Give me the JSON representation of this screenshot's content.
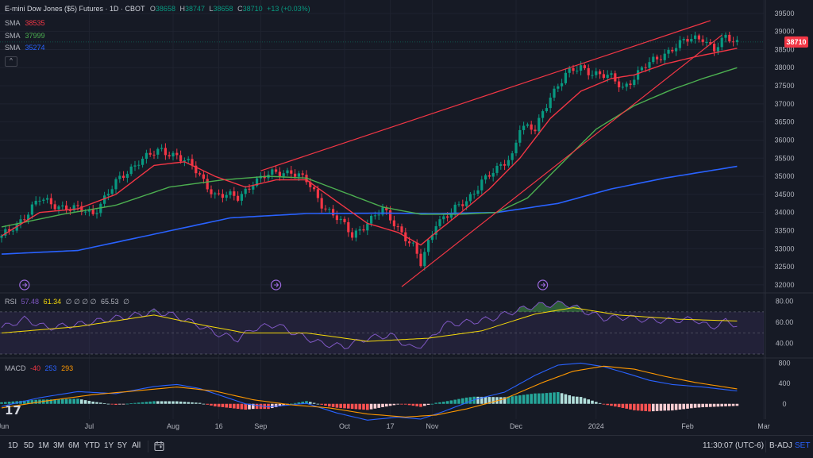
{
  "header": {
    "symbol": "E-mini Dow Jones ($5) Futures · 1D · CBOT",
    "o_label": "O",
    "o_value": "38658",
    "h_label": "H",
    "h_value": "38747",
    "l_label": "L",
    "l_value": "38658",
    "c_label": "C",
    "c_value": "38710",
    "change": "+13 (+0.03%)",
    "collapse_icon": "chevron-up-icon"
  },
  "sma": [
    {
      "label": "SMA",
      "value": "38535",
      "color": "#f23645"
    },
    {
      "label": "SMA",
      "value": "37999",
      "color": "#4caf50"
    },
    {
      "label": "SMA",
      "value": "35274",
      "color": "#2962ff"
    }
  ],
  "rsi_legend": {
    "label": "RSI",
    "v1": "57.48",
    "v2": "61.34",
    "zeros": "∅ ∅ ∅ ∅",
    "v3": "65.53",
    "tail": "∅",
    "c1": "#7e57c2",
    "c2": "#f5d90a"
  },
  "macd_legend": {
    "label": "MACD",
    "v1": "-40",
    "v2": "253",
    "v3": "293",
    "c1": "#f23645",
    "c2": "#2962ff",
    "c3": "#ff9800"
  },
  "last_price": "38710",
  "bottom": {
    "timeframes": [
      "1D",
      "5D",
      "1M",
      "3M",
      "6M",
      "YTD",
      "1Y",
      "5Y",
      "All"
    ],
    "time": "11:30:07 (UTC-6)",
    "badj": "B-ADJ",
    "set": "SET"
  },
  "colors": {
    "up": "#089981",
    "down": "#f23645",
    "sma20": "#f23645",
    "sma50": "#4caf50",
    "sma200": "#2962ff",
    "trend": "#f23645",
    "rsi": "#7e57c2",
    "rsi_ma": "#f5d90a",
    "macd": "#2962ff",
    "signal": "#ff9800",
    "bg": "#161a25",
    "grid": "#1f2330"
  },
  "chart_data": [
    {
      "type": "candlestick",
      "title": "E-mini Dow Jones ($5) Futures · 1D · CBOT",
      "y_ticks": [
        32000,
        32500,
        33000,
        33500,
        34000,
        34500,
        35000,
        35500,
        36000,
        36500,
        37000,
        37500,
        38000,
        38500,
        39000,
        39500
      ],
      "y_tick_labels": [
        "32000",
        "32500",
        "33000",
        "33500",
        "34000",
        "34500",
        "35000",
        "35500",
        "36000",
        "36500",
        "37000",
        "37500",
        "38000",
        "38500",
        "39000",
        "39500"
      ],
      "ylim": [
        31800,
        39650
      ],
      "x_tick_labels": [
        "Jun",
        "Jul",
        "Aug",
        "16",
        "Sep",
        "Oct",
        "17",
        "Nov",
        "Dec",
        "2024",
        "Feb",
        "Mar"
      ],
      "x_tick_bars": [
        -1,
        23,
        45,
        57,
        68,
        90,
        102,
        113,
        135,
        156,
        180,
        200
      ],
      "bar_count": 194,
      "path_knots": [
        [
          0,
          33300
        ],
        [
          6,
          33900
        ],
        [
          10,
          34350
        ],
        [
          18,
          34100
        ],
        [
          24,
          34000
        ],
        [
          30,
          34800
        ],
        [
          36,
          35450
        ],
        [
          42,
          35700
        ],
        [
          46,
          35600
        ],
        [
          50,
          35250
        ],
        [
          56,
          34500
        ],
        [
          62,
          34400
        ],
        [
          66,
          34850
        ],
        [
          72,
          35100
        ],
        [
          76,
          35150
        ],
        [
          80,
          34850
        ],
        [
          84,
          34250
        ],
        [
          88,
          33850
        ],
        [
          92,
          33350
        ],
        [
          96,
          33750
        ],
        [
          100,
          34050
        ],
        [
          104,
          33600
        ],
        [
          108,
          33050
        ],
        [
          110,
          32550
        ],
        [
          114,
          33750
        ],
        [
          118,
          34000
        ],
        [
          122,
          34300
        ],
        [
          126,
          34900
        ],
        [
          130,
          35150
        ],
        [
          134,
          35600
        ],
        [
          136,
          36400
        ],
        [
          140,
          36250
        ],
        [
          144,
          37250
        ],
        [
          148,
          37800
        ],
        [
          152,
          38000
        ],
        [
          156,
          37850
        ],
        [
          160,
          37700
        ],
        [
          163,
          37450
        ],
        [
          168,
          37950
        ],
        [
          172,
          38250
        ],
        [
          176,
          38550
        ],
        [
          180,
          38750
        ],
        [
          184,
          38850
        ],
        [
          187,
          38500
        ],
        [
          190,
          38800
        ],
        [
          193,
          38710
        ]
      ],
      "trendlines": [
        {
          "from": [
            68,
            35150
          ],
          "to": [
            186,
            39300
          ]
        },
        {
          "from": [
            105,
            31950
          ],
          "to": [
            189,
            38900
          ]
        }
      ],
      "sma20_knots": [
        [
          0,
          33350
        ],
        [
          10,
          34000
        ],
        [
          20,
          34100
        ],
        [
          30,
          34500
        ],
        [
          40,
          35300
        ],
        [
          48,
          35400
        ],
        [
          56,
          35000
        ],
        [
          64,
          34700
        ],
        [
          72,
          34900
        ],
        [
          80,
          34900
        ],
        [
          88,
          34300
        ],
        [
          96,
          33700
        ],
        [
          104,
          33450
        ],
        [
          110,
          33100
        ],
        [
          114,
          33450
        ],
        [
          120,
          33950
        ],
        [
          128,
          34650
        ],
        [
          136,
          35500
        ],
        [
          144,
          36600
        ],
        [
          152,
          37350
        ],
        [
          160,
          37700
        ],
        [
          166,
          37800
        ],
        [
          174,
          38100
        ],
        [
          182,
          38300
        ],
        [
          193,
          38535
        ]
      ],
      "sma50_knots": [
        [
          0,
          33600
        ],
        [
          16,
          33950
        ],
        [
          30,
          34200
        ],
        [
          44,
          34700
        ],
        [
          58,
          34900
        ],
        [
          70,
          35000
        ],
        [
          80,
          34950
        ],
        [
          90,
          34550
        ],
        [
          100,
          34150
        ],
        [
          110,
          33950
        ],
        [
          120,
          33950
        ],
        [
          130,
          34000
        ],
        [
          138,
          34400
        ],
        [
          146,
          35250
        ],
        [
          156,
          36300
        ],
        [
          166,
          36950
        ],
        [
          176,
          37400
        ],
        [
          184,
          37700
        ],
        [
          193,
          37999
        ]
      ],
      "sma200_knots": [
        [
          0,
          32850
        ],
        [
          20,
          32950
        ],
        [
          40,
          33400
        ],
        [
          60,
          33850
        ],
        [
          80,
          33970
        ],
        [
          100,
          33980
        ],
        [
          114,
          33970
        ],
        [
          130,
          34000
        ],
        [
          146,
          34250
        ],
        [
          160,
          34650
        ],
        [
          174,
          34950
        ],
        [
          193,
          35274
        ]
      ]
    },
    {
      "type": "line",
      "title": "RSI",
      "y_ticks": [
        40,
        60,
        80
      ],
      "y_tick_labels": [
        "40.00",
        "60.00",
        "80.00"
      ],
      "ylim": [
        27,
        88
      ],
      "band": [
        30,
        70
      ],
      "rsi_knots": [
        [
          0,
          55
        ],
        [
          6,
          63
        ],
        [
          12,
          55
        ],
        [
          20,
          58
        ],
        [
          28,
          63
        ],
        [
          34,
          66
        ],
        [
          40,
          70
        ],
        [
          44,
          68
        ],
        [
          50,
          60
        ],
        [
          56,
          50
        ],
        [
          62,
          44
        ],
        [
          66,
          54
        ],
        [
          72,
          58
        ],
        [
          78,
          48
        ],
        [
          84,
          40
        ],
        [
          90,
          37
        ],
        [
          96,
          45
        ],
        [
          102,
          48
        ],
        [
          108,
          35
        ],
        [
          112,
          42
        ],
        [
          116,
          58
        ],
        [
          122,
          60
        ],
        [
          128,
          63
        ],
        [
          134,
          70
        ],
        [
          140,
          76
        ],
        [
          144,
          77
        ],
        [
          148,
          78
        ],
        [
          152,
          72
        ],
        [
          158,
          64
        ],
        [
          164,
          65
        ],
        [
          170,
          62
        ],
        [
          176,
          62
        ],
        [
          182,
          63
        ],
        [
          186,
          55
        ],
        [
          190,
          61
        ],
        [
          193,
          57.48
        ]
      ],
      "ma_knots": [
        [
          0,
          50
        ],
        [
          20,
          56
        ],
        [
          40,
          67
        ],
        [
          52,
          58
        ],
        [
          64,
          50
        ],
        [
          80,
          50
        ],
        [
          96,
          42
        ],
        [
          112,
          45
        ],
        [
          126,
          52
        ],
        [
          140,
          68
        ],
        [
          150,
          74
        ],
        [
          162,
          67
        ],
        [
          178,
          63
        ],
        [
          193,
          61.34
        ]
      ]
    },
    {
      "type": "bar",
      "title": "MACD",
      "y_ticks": [
        0,
        400,
        800
      ],
      "y_tick_labels": [
        "0",
        "400",
        "800"
      ],
      "ylim": [
        -300,
        900
      ],
      "macd_knots": [
        [
          0,
          -50
        ],
        [
          10,
          120
        ],
        [
          20,
          240
        ],
        [
          30,
          200
        ],
        [
          40,
          340
        ],
        [
          46,
          380
        ],
        [
          52,
          300
        ],
        [
          58,
          150
        ],
        [
          64,
          0
        ],
        [
          70,
          -60
        ],
        [
          80,
          10
        ],
        [
          88,
          -180
        ],
        [
          96,
          -320
        ],
        [
          104,
          -260
        ],
        [
          110,
          -300
        ],
        [
          116,
          -150
        ],
        [
          124,
          80
        ],
        [
          132,
          230
        ],
        [
          140,
          560
        ],
        [
          146,
          760
        ],
        [
          152,
          800
        ],
        [
          158,
          730
        ],
        [
          164,
          600
        ],
        [
          170,
          460
        ],
        [
          176,
          380
        ],
        [
          184,
          330
        ],
        [
          193,
          253
        ]
      ],
      "signal_knots": [
        [
          0,
          -80
        ],
        [
          12,
          60
        ],
        [
          24,
          180
        ],
        [
          36,
          260
        ],
        [
          46,
          330
        ],
        [
          56,
          250
        ],
        [
          66,
          80
        ],
        [
          76,
          -20
        ],
        [
          86,
          -80
        ],
        [
          96,
          -200
        ],
        [
          106,
          -260
        ],
        [
          114,
          -220
        ],
        [
          122,
          -100
        ],
        [
          132,
          100
        ],
        [
          142,
          420
        ],
        [
          150,
          640
        ],
        [
          158,
          740
        ],
        [
          166,
          680
        ],
        [
          174,
          540
        ],
        [
          182,
          420
        ],
        [
          193,
          293
        ]
      ]
    }
  ]
}
